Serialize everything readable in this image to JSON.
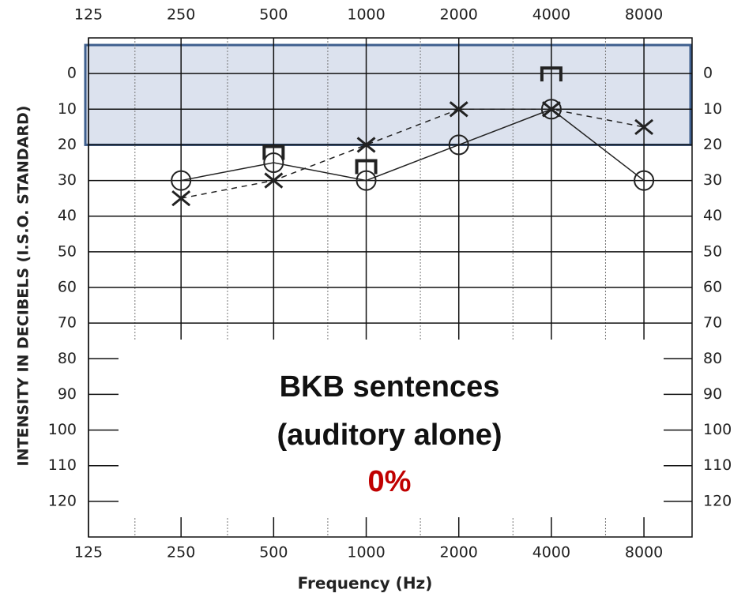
{
  "chart_data": {
    "type": "line",
    "y_axis_label": "INTENSITY IN DECIBELS (I.S.O. STANDARD)",
    "x_axis_label": "Frequency (Hz)",
    "annotations": [
      "BKB sentences",
      "(auditory alone)",
      "0%"
    ],
    "x": [
      250,
      500,
      1000,
      2000,
      4000,
      8000
    ],
    "xlim": [
      125,
      11470
    ],
    "xscale": "log",
    "xticks": [
      125,
      250,
      500,
      1000,
      2000,
      4000,
      8000
    ],
    "minor_xticks": [
      177,
      354,
      750,
      1500,
      3000,
      6000
    ],
    "ylim": [
      -10,
      130
    ],
    "yinverted": true,
    "yticks": [
      0,
      10,
      20,
      30,
      40,
      50,
      60,
      70,
      80,
      90,
      100,
      110,
      120
    ],
    "highlight_range": [
      -8,
      20
    ],
    "series": [
      {
        "marker": "circle",
        "line": "solid",
        "color": "#222",
        "values": [
          30,
          25,
          30,
          20,
          10,
          30
        ]
      },
      {
        "marker": "x",
        "line": "dashed",
        "color": "#222",
        "values": [
          35,
          30,
          20,
          10,
          10,
          15
        ]
      },
      {
        "marker": "bracket",
        "line": "none",
        "color": "#222",
        "values": [
          null,
          22,
          26,
          null,
          0,
          null
        ]
      }
    ]
  }
}
